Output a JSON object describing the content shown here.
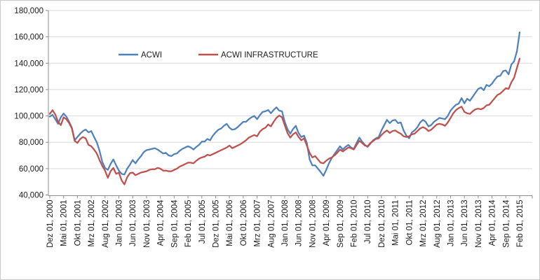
{
  "chart_data": {
    "type": "line",
    "title": "",
    "grid": "horizontal",
    "legend_position": "top-inside",
    "x_label_interval": 5,
    "x_tick_labels": [
      "Dez 01, 2000",
      "Mai 01, 2001",
      "Okt 01, 2001",
      "Mrz 01, 2002",
      "Aug 01, 2002",
      "Jan 01, 2003",
      "Jun 01, 2003",
      "Nov 01, 2003",
      "Apr 01, 2004",
      "Sep 01, 2004",
      "Feb 01, 2005",
      "Jul 01, 2005",
      "Dez 01, 2005",
      "Mai 01, 2006",
      "Okt 01, 2006",
      "Mrz 01, 2007",
      "Aug 01, 2007",
      "Jan 01, 2008",
      "Jun 01, 2008",
      "Nov 01, 2008",
      "Apr 01, 2009",
      "Sep 01, 2009",
      "Feb 01, 2010",
      "Jul 01, 2010",
      "Dez 01, 2010",
      "Mai 01, 2011",
      "Okt 01, 2011",
      "Mrz 01, 2012",
      "Aug 01, 2012",
      "Jan 01, 2013",
      "Jun 01, 2013",
      "Nov 01, 2013",
      "Apr 01, 2014",
      "Sep 01, 2014",
      "Feb 01, 2015"
    ],
    "axis": {
      "y_min": 40000,
      "y_max": 180000,
      "y_step": 20000,
      "y_ticks": [
        {
          "label": "180,000",
          "value": 180000
        },
        {
          "label": "160,000",
          "value": 160000
        },
        {
          "label": "140,000",
          "value": 140000
        },
        {
          "label": "120,000",
          "value": 120000
        },
        {
          "label": "100,000",
          "value": 100000
        },
        {
          "label": "80,000",
          "value": 80000
        },
        {
          "label": "60,000",
          "value": 60000
        },
        {
          "label": "40,000",
          "value": 40000
        }
      ]
    },
    "series": [
      {
        "name": "ACWI",
        "color": "#4F81BD",
        "values": [
          99500,
          100800,
          97500,
          94000,
          99000,
          101800,
          99500,
          95500,
          91000,
          81500,
          84000,
          86500,
          88500,
          89700,
          87500,
          88500,
          84000,
          80000,
          73500,
          65000,
          60500,
          59000,
          63500,
          67000,
          62500,
          58500,
          56000,
          55500,
          60000,
          63000,
          66500,
          64000,
          67000,
          69500,
          72500,
          74000,
          74500,
          75000,
          75500,
          74500,
          73000,
          71500,
          72000,
          70000,
          69500,
          71000,
          71500,
          73500,
          75000,
          76000,
          77000,
          76000,
          74500,
          76500,
          78000,
          80500,
          80500,
          82500,
          81500,
          85000,
          87500,
          89500,
          90500,
          92500,
          94000,
          91000,
          89500,
          90000,
          91500,
          93500,
          95500,
          95500,
          97500,
          99000,
          100000,
          97500,
          100500,
          103000,
          103500,
          104500,
          102000,
          104500,
          106500,
          104000,
          103500,
          95500,
          90000,
          86500,
          90000,
          92500,
          87000,
          84000,
          85000,
          79500,
          67000,
          62500,
          62500,
          60000,
          57500,
          54500,
          59000,
          64000,
          68000,
          71000,
          74000,
          77000,
          74500,
          76500,
          78000,
          76000,
          75000,
          79500,
          83500,
          80500,
          78000,
          76500,
          79000,
          81500,
          83000,
          84000,
          89000,
          93000,
          97000,
          94500,
          96500,
          97000,
          94500,
          95000,
          89000,
          85000,
          83000,
          87500,
          89000,
          91500,
          95000,
          97000,
          95500,
          92000,
          93000,
          95500,
          97000,
          98500,
          98000,
          97500,
          100000,
          104000,
          106500,
          108500,
          109500,
          113500,
          109500,
          113000,
          111500,
          114500,
          117500,
          120500,
          121500,
          119500,
          123500,
          122500,
          124500,
          127500,
          130000,
          130500,
          134000,
          134500,
          131500,
          139000,
          141500,
          149000,
          163500
        ]
      },
      {
        "name": "ACWI INFRASTRUCTURE",
        "color": "#C0504D",
        "values": [
          101500,
          104300,
          101000,
          95500,
          93000,
          99000,
          97500,
          94500,
          90500,
          81000,
          79500,
          82500,
          84000,
          83000,
          78000,
          77000,
          74500,
          71500,
          66500,
          62000,
          58500,
          53000,
          58000,
          60500,
          56000,
          57000,
          51000,
          48000,
          53500,
          56500,
          57000,
          55000,
          56000,
          57000,
          57500,
          58000,
          59000,
          59500,
          59500,
          60500,
          60000,
          58500,
          58500,
          58000,
          58000,
          59000,
          60000,
          61500,
          62500,
          63500,
          64500,
          64500,
          64000,
          66000,
          67500,
          68500,
          69000,
          70500,
          70000,
          71000,
          72000,
          73000,
          74000,
          75000,
          76000,
          77500,
          75500,
          76500,
          77500,
          78500,
          80000,
          81500,
          83500,
          84500,
          85500,
          84500,
          88000,
          90000,
          91000,
          93500,
          92000,
          95500,
          98500,
          100300,
          99000,
          93000,
          87000,
          83500,
          86000,
          87500,
          84000,
          81500,
          83000,
          77500,
          72000,
          68500,
          69500,
          67000,
          64500,
          64000,
          66000,
          67500,
          68500,
          70000,
          72000,
          74500,
          73000,
          74500,
          76000,
          75500,
          74500,
          78000,
          81000,
          79500,
          77500,
          77000,
          79500,
          81000,
          82500,
          83000,
          85500,
          87500,
          89000,
          87000,
          88500,
          89000,
          87500,
          86500,
          84500,
          84000,
          84500,
          86000,
          86500,
          88500,
          90500,
          91500,
          90500,
          88500,
          89500,
          91500,
          93500,
          94000,
          93500,
          92500,
          95000,
          98500,
          102000,
          104500,
          106000,
          107000,
          103000,
          102000,
          101500,
          103500,
          105000,
          105500,
          105000,
          106000,
          108000,
          108500,
          111000,
          113500,
          116000,
          117000,
          119000,
          121000,
          120500,
          125500,
          129000,
          136500,
          143500
        ]
      }
    ]
  }
}
